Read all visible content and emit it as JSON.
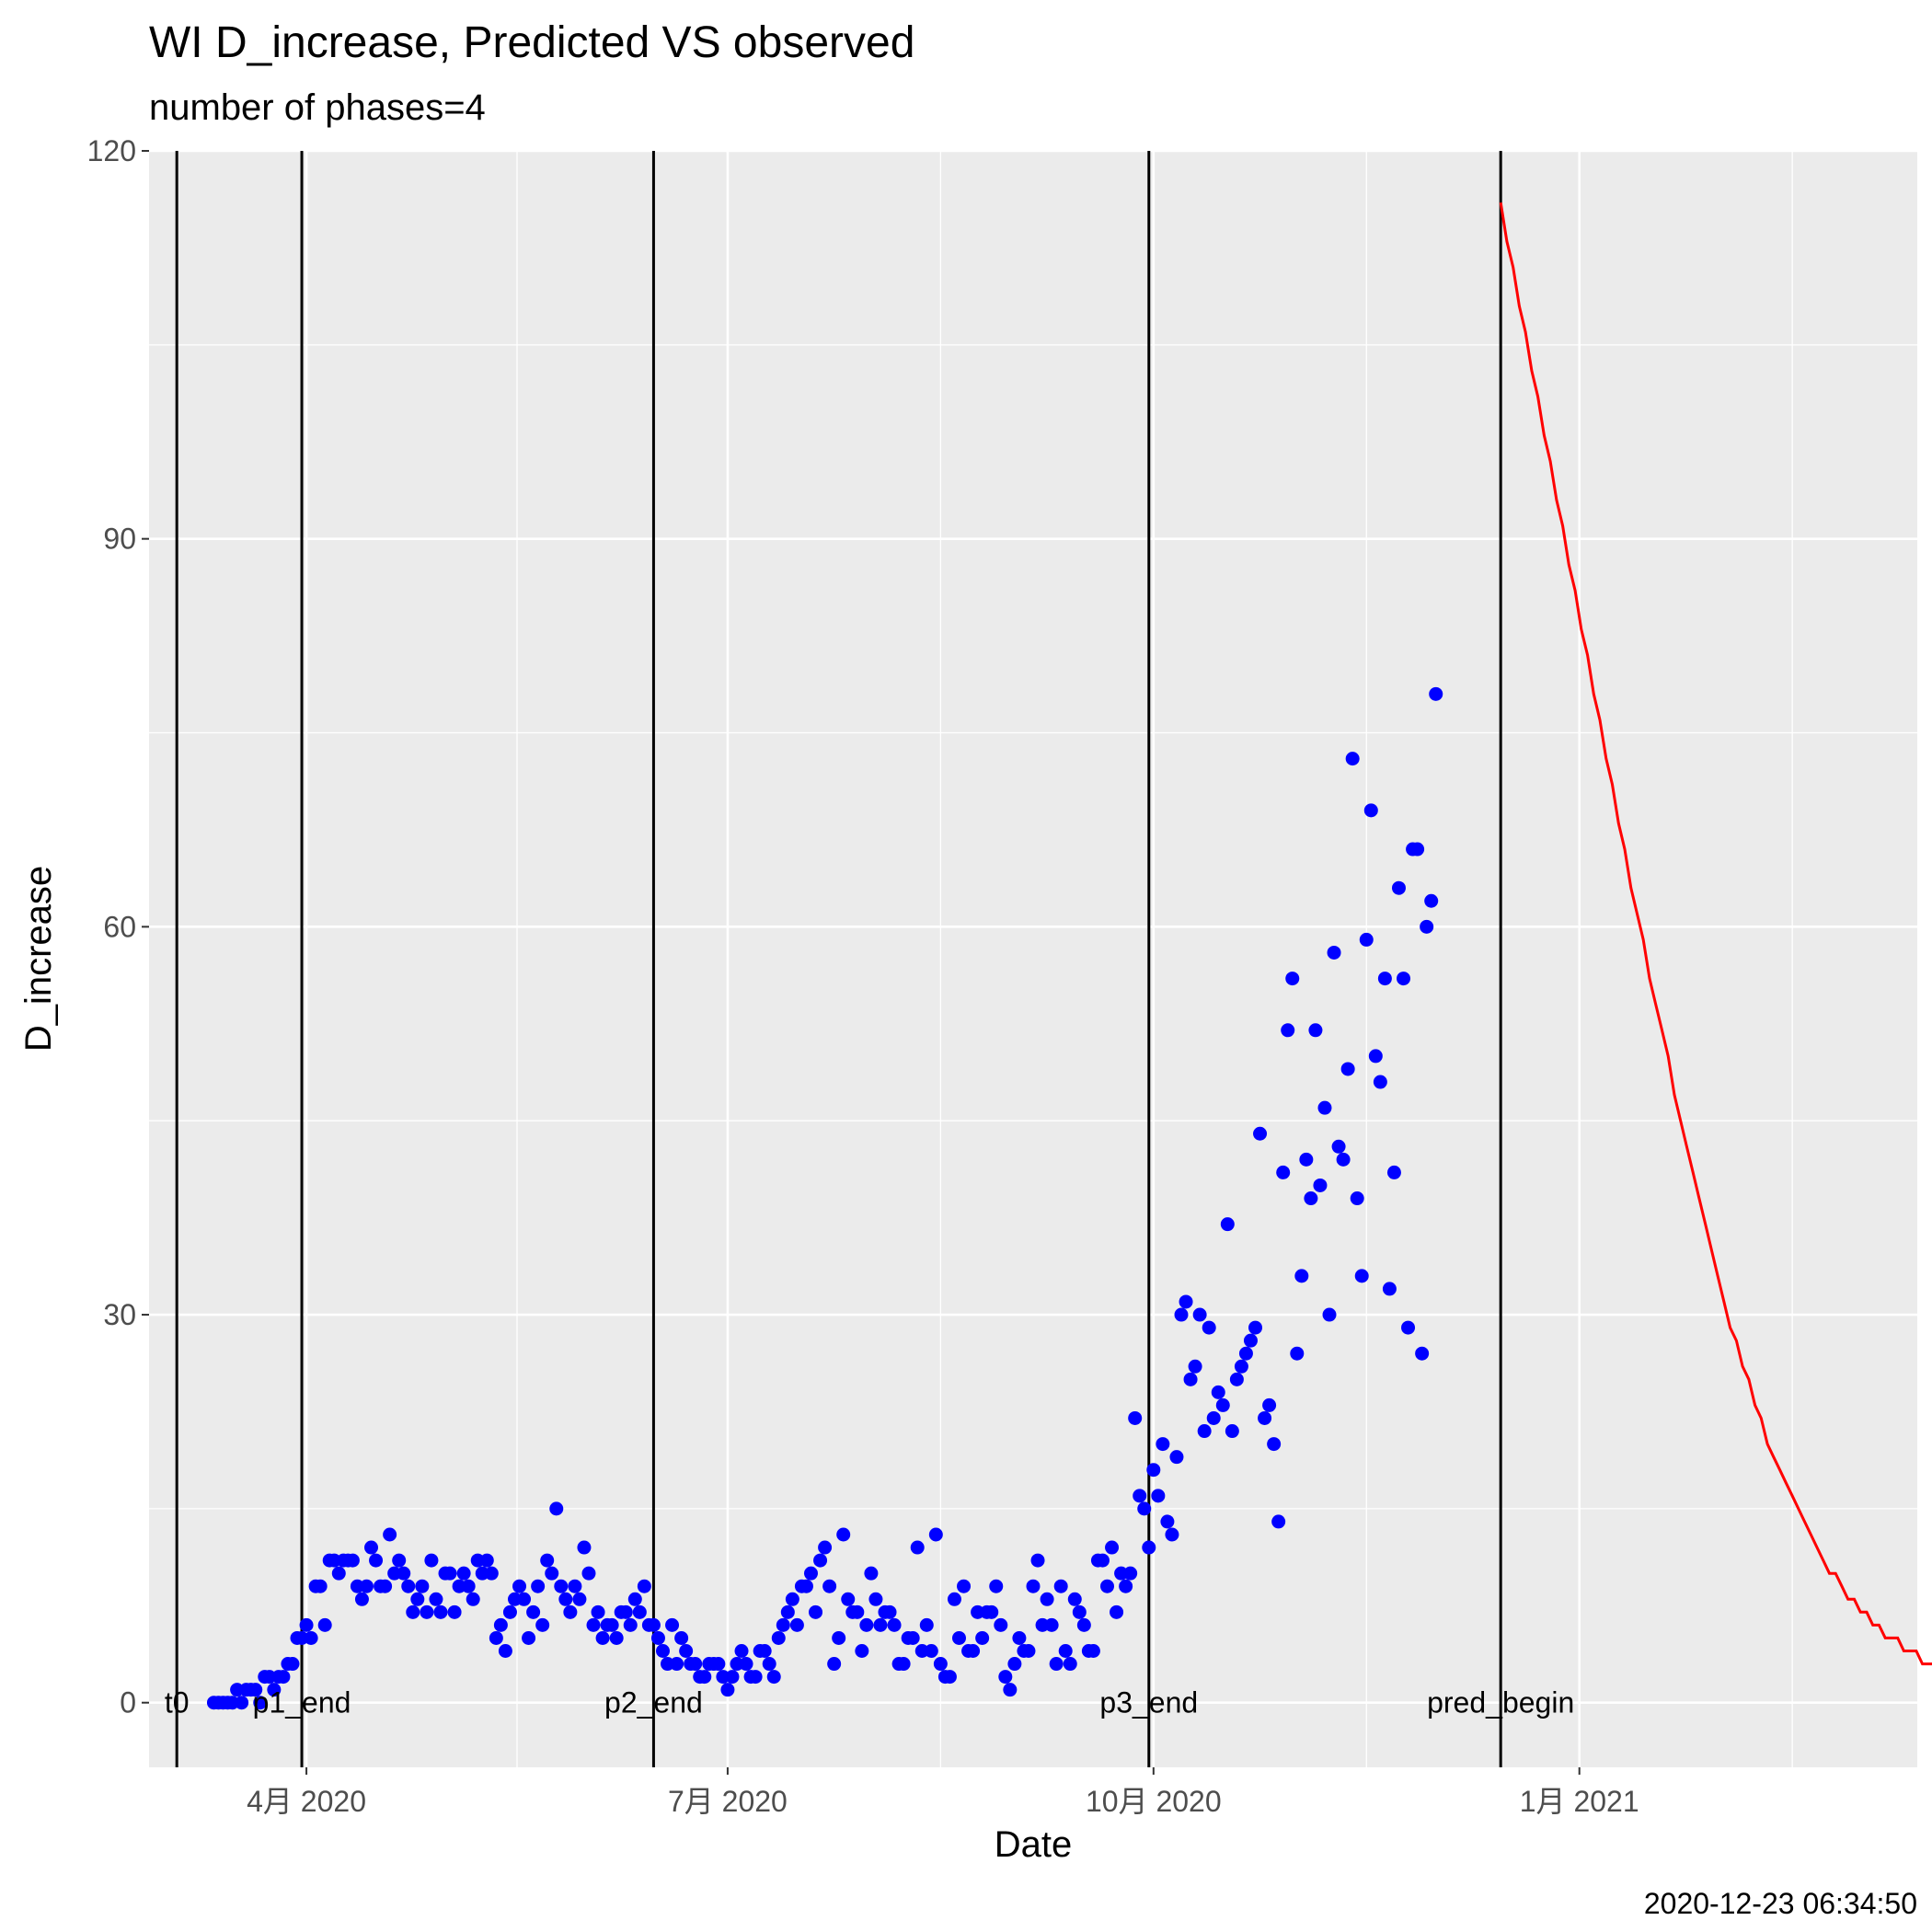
{
  "chart_data": {
    "type": "scatter",
    "title": "WI D_increase, Predicted VS observed",
    "subtitle": "number of phases=4",
    "xlabel": "Date",
    "ylabel": "D_increase",
    "caption": "2020-12-23 06:34:50",
    "ylim": [
      -5,
      120
    ],
    "xlim": [
      "2020-02-27",
      "2021-03-15"
    ],
    "y_ticks": [
      0,
      30,
      60,
      90,
      120
    ],
    "y_tick_labels": [
      "0",
      "30",
      "60",
      "90",
      "120"
    ],
    "x_ticks": [
      "2020-04-01",
      "2020-07-01",
      "2020-10-01",
      "2021-01-01"
    ],
    "x_tick_labels": [
      "4月 2020",
      "7月 2020",
      "10月 2020",
      "1月 2021"
    ],
    "grid": true,
    "background": "#ebebeb",
    "observed_color": "#0000ff",
    "predicted_color": "#ff0000",
    "phase_markers": [
      {
        "label": "t0",
        "date": "2020-03-04"
      },
      {
        "label": "p1_end",
        "date": "2020-03-31"
      },
      {
        "label": "p2_end",
        "date": "2020-06-15"
      },
      {
        "label": "p3_end",
        "date": "2020-09-30"
      },
      {
        "label": "pred_begin",
        "date": "2020-12-15"
      }
    ],
    "observed": {
      "name": "observed",
      "start_date": "2020-03-12",
      "values": [
        0,
        0,
        0,
        0,
        0,
        1,
        0,
        1,
        1,
        1,
        0,
        2,
        2,
        1,
        2,
        2,
        3,
        3,
        5,
        5,
        6,
        5,
        9,
        9,
        6,
        11,
        11,
        10,
        11,
        11,
        11,
        9,
        8,
        9,
        12,
        11,
        9,
        9,
        13,
        10,
        11,
        10,
        9,
        7,
        8,
        9,
        7,
        11,
        8,
        7,
        10,
        10,
        7,
        9,
        10,
        9,
        8,
        11,
        10,
        11,
        10,
        5,
        6,
        4,
        7,
        8,
        9,
        8,
        5,
        7,
        9,
        6,
        11,
        10,
        15,
        9,
        8,
        7,
        9,
        8,
        12,
        10,
        6,
        7,
        5,
        6,
        6,
        5,
        7,
        7,
        6,
        8,
        7,
        9,
        6,
        6,
        5,
        4,
        3,
        6,
        3,
        5,
        4,
        3,
        3,
        2,
        2,
        3,
        3,
        3,
        2,
        1,
        2,
        3,
        4,
        3,
        2,
        2,
        4,
        4,
        3,
        2,
        5,
        6,
        7,
        8,
        6,
        9,
        9,
        10,
        7,
        11,
        12,
        9,
        3,
        5,
        13,
        8,
        7,
        7,
        4,
        6,
        10,
        8,
        6,
        7,
        7,
        6,
        3,
        3,
        5,
        5,
        12,
        4,
        6,
        4,
        13,
        3,
        2,
        2,
        8,
        5,
        9,
        4,
        4,
        7,
        5,
        7,
        7,
        9,
        6,
        2,
        1,
        3,
        5,
        4,
        4,
        9,
        11,
        6,
        8,
        6,
        3,
        9,
        4,
        3,
        8,
        7,
        6,
        4,
        4,
        11,
        11,
        9,
        12,
        7,
        10,
        9,
        10,
        22,
        16,
        15,
        12,
        18,
        16,
        20,
        14,
        13,
        19,
        30,
        31,
        25,
        26,
        30,
        21,
        29,
        22,
        24,
        23,
        37,
        21,
        25,
        26,
        27,
        28,
        29,
        44,
        22,
        23,
        20,
        14,
        41,
        52,
        56,
        27,
        33,
        42,
        39,
        52,
        40,
        46,
        30,
        58,
        43,
        42,
        49,
        73,
        39,
        33,
        59,
        69,
        50,
        48,
        56,
        32,
        41,
        63,
        56,
        29,
        66,
        66,
        27,
        60,
        62,
        78
      ]
    },
    "predicted": {
      "name": "predicted",
      "start_date": "2020-12-15",
      "values": [
        116,
        113,
        111,
        108,
        106,
        103,
        101,
        98,
        96,
        93,
        91,
        88,
        86,
        83,
        81,
        78,
        76,
        73,
        71,
        68,
        66,
        63,
        61,
        59,
        56,
        54,
        52,
        50,
        47,
        45,
        43,
        41,
        39,
        37,
        35,
        33,
        31,
        29,
        28,
        26,
        25,
        23,
        22,
        20,
        19,
        18,
        17,
        16,
        15,
        14,
        13,
        12,
        11,
        10,
        10,
        9,
        8,
        8,
        7,
        7,
        6,
        6,
        5,
        5,
        5,
        4,
        4,
        4,
        3,
        3,
        3,
        3,
        3,
        3,
        2.5,
        2.5,
        2.5,
        2.5
      ]
    }
  }
}
